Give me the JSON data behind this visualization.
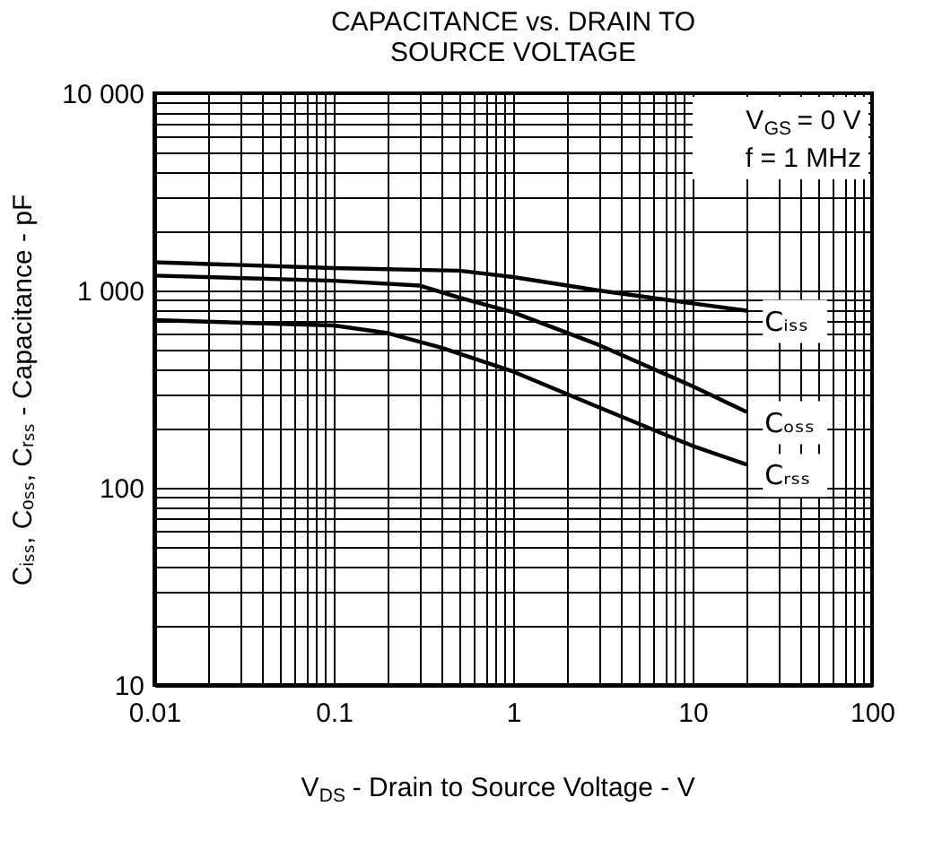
{
  "chart_data": {
    "type": "line",
    "title": "CAPACITANCE vs. DRAIN TO SOURCE VOLTAGE",
    "xlabel": "V$_{DS}$ - Drain to Source Voltage - V",
    "ylabel": "Cᵢₛₛ, Cₒₛₛ, Cᵣₛₛ - Capacitance - pF",
    "annotations": [
      "V$_{GS}$ = 0 V",
      "f = 1 MHz"
    ],
    "log": "xy",
    "grid": true,
    "legend": false,
    "marker": "none",
    "line_style": "solid",
    "xlim": [
      0.01,
      100
    ],
    "ylim": [
      10,
      10000
    ],
    "xticks": [
      0.01,
      {
        "value": 0.02,
        "label": null
      },
      {
        "value": 0.03,
        "label": null
      },
      {
        "value": 0.04,
        "label": null
      },
      {
        "value": 0.05,
        "label": null
      },
      {
        "value": 0.06,
        "label": null
      },
      {
        "value": 0.07,
        "label": null
      },
      {
        "value": 0.08,
        "label": null
      },
      {
        "value": 0.09,
        "label": null
      },
      0.1,
      {
        "value": 0.2,
        "label": null
      },
      {
        "value": 0.3,
        "label": null
      },
      {
        "value": 0.4,
        "label": null
      },
      {
        "value": 0.5,
        "label": null
      },
      {
        "value": 0.6,
        "label": null
      },
      {
        "value": 0.7,
        "label": null
      },
      {
        "value": 0.8,
        "label": null
      },
      {
        "value": 0.9,
        "label": null
      },
      1,
      {
        "value": 2,
        "label": null
      },
      {
        "value": 3,
        "label": null
      },
      {
        "value": 4,
        "label": null
      },
      {
        "value": 5,
        "label": null
      },
      {
        "value": 6,
        "label": null
      },
      {
        "value": 7,
        "label": null
      },
      {
        "value": 8,
        "label": null
      },
      {
        "value": 9,
        "label": null
      },
      10,
      {
        "value": 20,
        "label": null
      },
      {
        "value": 30,
        "label": null
      },
      {
        "value": 40,
        "label": null
      },
      {
        "value": 50,
        "label": null
      },
      {
        "value": 60,
        "label": null
      },
      {
        "value": 70,
        "label": null
      },
      {
        "value": 80,
        "label": null
      },
      {
        "value": 90,
        "label": null
      },
      100
    ],
    "yticks": [
      10,
      {
        "value": 20,
        "label": null
      },
      {
        "value": 30,
        "label": null
      },
      {
        "value": 40,
        "label": null
      },
      {
        "value": 50,
        "label": null
      },
      {
        "value": 60,
        "label": null
      },
      {
        "value": 70,
        "label": null
      },
      {
        "value": 80,
        "label": null
      },
      {
        "value": 90,
        "label": null
      },
      100,
      {
        "value": 200,
        "label": null
      },
      {
        "value": 300,
        "label": null
      },
      {
        "value": 400,
        "label": null
      },
      {
        "value": 500,
        "label": null
      },
      {
        "value": 600,
        "label": null
      },
      {
        "value": 700,
        "label": null
      },
      {
        "value": 800,
        "label": null
      },
      {
        "value": 900,
        "label": null
      },
      {
        "value": 1000,
        "label": "1 000"
      },
      {
        "value": 2000,
        "label": null
      },
      {
        "value": 3000,
        "label": null
      },
      {
        "value": 4000,
        "label": null
      },
      {
        "value": 5000,
        "label": null
      },
      {
        "value": 6000,
        "label": null
      },
      {
        "value": 7000,
        "label": null
      },
      {
        "value": 8000,
        "label": null
      },
      {
        "value": 9000,
        "label": null
      },
      {
        "value": 10000,
        "label": "10 000"
      }
    ],
    "series": [
      {
        "name": "Cᵢₛₛ",
        "color": "#000000",
        "x": [
          0.01,
          0.1,
          0.5,
          1,
          3,
          10,
          20
        ],
        "values": [
          1390,
          1300,
          1260,
          1170,
          1000,
          860,
          790
        ]
      },
      {
        "name": "Cₒₛₛ",
        "color": "#000000",
        "x": [
          0.01,
          0.1,
          0.3,
          0.5,
          1,
          3,
          10,
          20
        ],
        "values": [
          1190,
          1120,
          1060,
          920,
          775,
          530,
          327,
          242
        ]
      },
      {
        "name": "Cᵣₛₛ",
        "color": "#000000",
        "x": [
          0.01,
          0.1,
          0.2,
          0.4,
          1,
          3,
          10,
          20
        ],
        "values": [
          708,
          665,
          608,
          512,
          388,
          256,
          163,
          131
        ]
      }
    ]
  }
}
